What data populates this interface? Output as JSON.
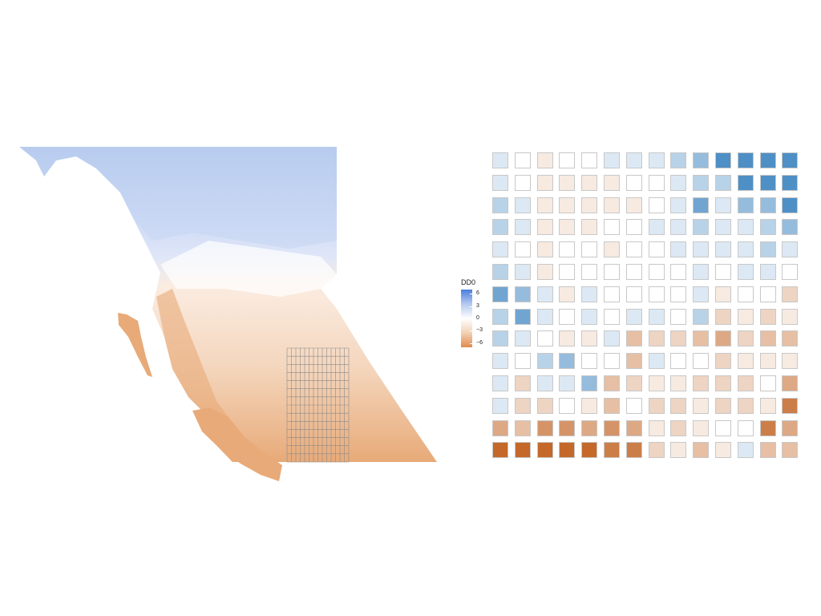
{
  "legend": {
    "title": "DD0",
    "ticks": [
      {
        "label": "6",
        "value": 6
      },
      {
        "label": "3",
        "value": 3
      },
      {
        "label": "0",
        "value": 0
      },
      {
        "label": "−3",
        "value": -3
      },
      {
        "label": "−6",
        "value": -6
      }
    ],
    "range": [
      -7,
      7
    ],
    "colors": {
      "high": "#4a7fde",
      "mid": "#ffffff",
      "low": "#e08a4e"
    }
  },
  "map": {
    "grid_overlay": {
      "rows": 14,
      "cols": 14
    },
    "colors": {
      "north": "#c5d6f3",
      "north_dark": "#a9c1ec",
      "south": "#f4dcc7",
      "coast": "#e8aa78",
      "grid": "#8a8a8a"
    }
  },
  "chart_data": {
    "type": "heatmap",
    "rows": 14,
    "cols": 14,
    "palette": {
      "positive": "#4e8fc6",
      "neutral": "#ffffff",
      "negative": "#c4692a"
    },
    "values": [
      [
        1,
        0,
        -1,
        0,
        0,
        1,
        1,
        1,
        2,
        3,
        5,
        5,
        5,
        5
      ],
      [
        1,
        0,
        -1,
        -1,
        -1,
        -1,
        0,
        0,
        1,
        2,
        2,
        5,
        5,
        5
      ],
      [
        2,
        1,
        -1,
        -1,
        -1,
        -1,
        -1,
        0,
        1,
        4,
        1,
        3,
        3,
        5
      ],
      [
        2,
        1,
        -1,
        -1,
        -1,
        0,
        0,
        1,
        1,
        2,
        1,
        1,
        2,
        3
      ],
      [
        1,
        0,
        -1,
        0,
        0,
        -1,
        0,
        0,
        1,
        1,
        1,
        1,
        2,
        1
      ],
      [
        2,
        1,
        -1,
        0,
        0,
        0,
        0,
        0,
        0,
        1,
        0,
        1,
        1,
        0
      ],
      [
        4,
        3,
        1,
        -1,
        1,
        0,
        0,
        0,
        0,
        1,
        -1,
        0,
        0,
        -2
      ],
      [
        2,
        4,
        1,
        0,
        1,
        0,
        1,
        1,
        0,
        2,
        -2,
        -1,
        -2,
        -1
      ],
      [
        2,
        1,
        0,
        -1,
        -1,
        1,
        -3,
        -2,
        -2,
        -3,
        -4,
        -2,
        -3,
        -3
      ],
      [
        1,
        0,
        2,
        3,
        0,
        0,
        -3,
        1,
        0,
        0,
        -2,
        -1,
        -1,
        -1
      ],
      [
        1,
        -2,
        1,
        1,
        3,
        -3,
        -2,
        -1,
        -1,
        -2,
        -2,
        -2,
        0,
        -4
      ],
      [
        1,
        -2,
        -2,
        0,
        -1,
        -3,
        0,
        -2,
        -2,
        -1,
        -2,
        -2,
        -1,
        -6
      ],
      [
        -4,
        -3,
        -5,
        -5,
        -4,
        -5,
        -4,
        -1,
        -2,
        -1,
        0,
        0,
        -6,
        -4
      ],
      [
        -7,
        -7,
        -7,
        -7,
        -7,
        -6,
        -6,
        -2,
        -1,
        -3,
        -1,
        1,
        -3,
        -3
      ]
    ]
  }
}
